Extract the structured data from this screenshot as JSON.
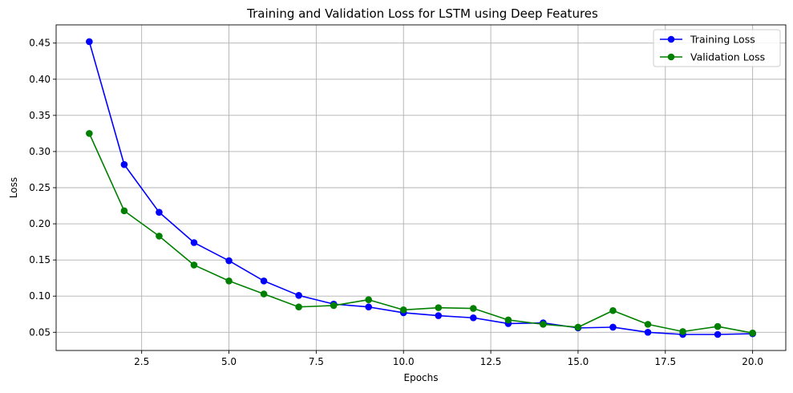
{
  "chart_data": {
    "type": "line",
    "title": "Training and Validation Loss for LSTM using Deep Features",
    "xlabel": "Epochs",
    "ylabel": "Loss",
    "xlim": [
      0.05,
      20.95
    ],
    "ylim": [
      0.0248,
      0.4752
    ],
    "xticks": [
      2.5,
      5.0,
      7.5,
      10.0,
      12.5,
      15.0,
      17.5,
      20.0
    ],
    "xtick_labels": [
      "2.5",
      "5.0",
      "7.5",
      "10.0",
      "12.5",
      "15.0",
      "17.5",
      "20.0"
    ],
    "yticks": [
      0.05,
      0.1,
      0.15,
      0.2,
      0.25,
      0.3,
      0.35,
      0.4,
      0.45
    ],
    "ytick_labels": [
      "0.05",
      "0.10",
      "0.15",
      "0.20",
      "0.25",
      "0.30",
      "0.35",
      "0.40",
      "0.45"
    ],
    "grid": true,
    "legend_position": "top-right",
    "x": [
      1,
      2,
      3,
      4,
      5,
      6,
      7,
      8,
      9,
      10,
      11,
      12,
      13,
      14,
      15,
      16,
      17,
      18,
      19,
      20
    ],
    "series": [
      {
        "name": "Training Loss",
        "color": "#0000ff",
        "marker": "circle",
        "values": [
          0.452,
          0.282,
          0.216,
          0.174,
          0.149,
          0.121,
          0.101,
          0.089,
          0.085,
          0.077,
          0.073,
          0.07,
          0.062,
          0.063,
          0.056,
          0.057,
          0.05,
          0.047,
          0.047,
          0.048
        ]
      },
      {
        "name": "Validation Loss",
        "color": "#008000",
        "marker": "circle",
        "values": [
          0.325,
          0.218,
          0.183,
          0.143,
          0.121,
          0.103,
          0.085,
          0.087,
          0.095,
          0.081,
          0.084,
          0.083,
          0.067,
          0.061,
          0.057,
          0.08,
          0.061,
          0.051,
          0.058,
          0.049
        ]
      }
    ]
  }
}
